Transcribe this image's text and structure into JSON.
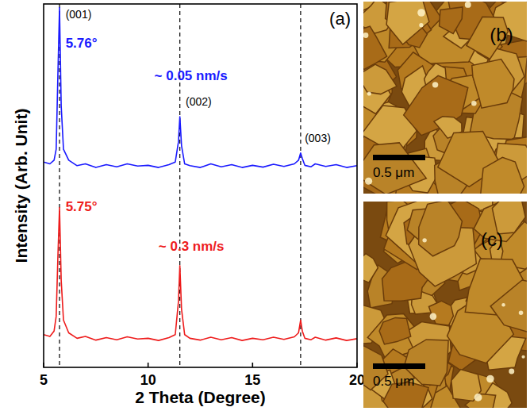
{
  "chart_data": {
    "type": "line",
    "panel_label": "(a)",
    "x_label": "2 Theta (Degree)",
    "y_label": "Intensity (Arb. Unit)",
    "xlim": [
      5,
      20
    ],
    "xticks": [
      5,
      10,
      15,
      20
    ],
    "ylim": [
      0,
      100
    ],
    "tick_labels": "x",
    "grid": false,
    "x": [
      5,
      5.3,
      5.5,
      5.6,
      5.68,
      5.76,
      5.84,
      5.95,
      6.2,
      6.6,
      7,
      7.5,
      8,
      8.5,
      9,
      9.5,
      10,
      10.5,
      11,
      11.3,
      11.45,
      11.52,
      11.6,
      11.75,
      12,
      12.5,
      13,
      13.5,
      14,
      14.5,
      15,
      15.5,
      16,
      16.5,
      17,
      17.2,
      17.3,
      17.38,
      17.5,
      17.8,
      18,
      18.5,
      19,
      19.5,
      20
    ],
    "series": [
      {
        "color": "#1a1aff",
        "values": [
          56.5,
          56,
          57,
          60,
          80,
          99,
          72,
          60,
          57,
          55.5,
          56,
          55,
          55.8,
          55.2,
          56,
          55.4,
          55.6,
          55,
          55.8,
          56.5,
          62,
          69,
          61,
          56,
          55.5,
          55,
          56,
          55.2,
          55.8,
          55,
          55.6,
          55.1,
          55.9,
          55.3,
          56,
          57,
          59,
          57.5,
          55.6,
          55.2,
          56,
          55.3,
          55.8,
          55,
          55.5
        ]
      },
      {
        "color": "#ee1c1c",
        "values": [
          9,
          8.5,
          10,
          14,
          30,
          44,
          24,
          13,
          9.5,
          8,
          8.5,
          7.5,
          8.2,
          7.6,
          8.4,
          7.8,
          8,
          7.4,
          8.2,
          9,
          18,
          28,
          16,
          9,
          8,
          7.5,
          8.3,
          7.6,
          8.2,
          7.4,
          8,
          7.6,
          8.3,
          7.7,
          8.4,
          9.5,
          13,
          10,
          8,
          7.6,
          8.3,
          7.5,
          8.1,
          7.4,
          7.9
        ]
      }
    ],
    "vlines": [
      5.76,
      11.52,
      17.3
    ],
    "annotations": [
      {
        "text": "(001)",
        "x": 6.05,
        "y": 96
      },
      {
        "text": "5.76°",
        "x": 6.05,
        "y": 88,
        "color": "#1a1aff"
      },
      {
        "text": "~ 0.05 nm/s",
        "x": 10.3,
        "y": 79,
        "color": "#1a1aff"
      },
      {
        "text": "(002)",
        "x": 11.8,
        "y": 72
      },
      {
        "text": "(003)",
        "x": 17.5,
        "y": 62
      },
      {
        "text": "5.75°",
        "x": 6.05,
        "y": 43,
        "color": "#ee1c1c"
      },
      {
        "text": "~ 0.3 nm/s",
        "x": 10.5,
        "y": 32,
        "color": "#ee1c1c"
      }
    ]
  },
  "images": [
    {
      "label": "(b)",
      "scale_bar": "0.5 μm"
    },
    {
      "label": "(c)",
      "scale_bar": "0.5 μm"
    }
  ]
}
